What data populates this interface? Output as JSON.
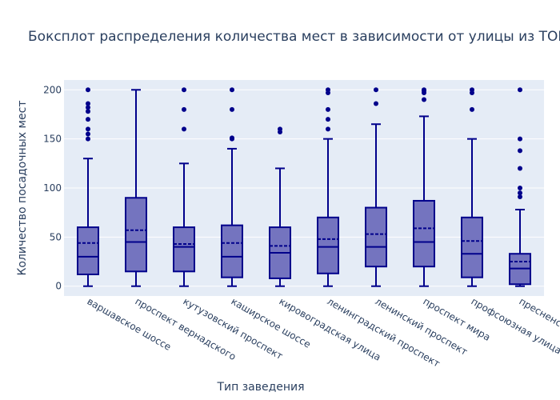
{
  "chart_data": {
    "type": "box",
    "title": "Боксплот распределения количества мест в зависимости от улицы из ТОП-",
    "xlabel": "Тип заведения",
    "ylabel": "Количество посадочных мест",
    "ylim": [
      -10,
      210
    ],
    "yticks": [
      0,
      50,
      100,
      150,
      200
    ],
    "grid": true,
    "legend": "none",
    "colors": {
      "plot_bg": "#e5ecf6",
      "box_fill": "#7474bf",
      "box_line": "#00008b",
      "grid": "#ffffff",
      "text": "#2a3f5f"
    },
    "categories": [
      "варшавское шоссе",
      "проспект вернадского",
      "кутузовский проспект",
      "каширское шоссе",
      "кировоградская улица",
      "ленинградский проспект",
      "ленинский проспект",
      "проспект мира",
      "профсоюзная улица",
      "пресненская набережная"
    ],
    "boxes": [
      {
        "min": 0,
        "q1": 12,
        "median": 30,
        "q3": 60,
        "max": 130,
        "mean": 44,
        "outliers": [
          150,
          155,
          160,
          170,
          178,
          182,
          186,
          200
        ]
      },
      {
        "min": 0,
        "q1": 15,
        "median": 45,
        "q3": 90,
        "max": 200,
        "mean": 57,
        "outliers": []
      },
      {
        "min": 0,
        "q1": 15,
        "median": 40,
        "q3": 60,
        "max": 125,
        "mean": 43,
        "outliers": [
          160,
          180,
          200
        ]
      },
      {
        "min": 0,
        "q1": 9,
        "median": 30,
        "q3": 62,
        "max": 140,
        "mean": 44,
        "outliers": [
          150,
          151,
          180,
          200
        ]
      },
      {
        "min": 0,
        "q1": 8,
        "median": 34,
        "q3": 60,
        "max": 120,
        "mean": 41,
        "outliers": [
          157,
          160
        ]
      },
      {
        "min": 0,
        "q1": 13,
        "median": 40,
        "q3": 70,
        "max": 150,
        "mean": 48,
        "outliers": [
          160,
          170,
          180,
          197,
          200
        ]
      },
      {
        "min": 0,
        "q1": 20,
        "median": 40,
        "q3": 80,
        "max": 165,
        "mean": 53,
        "outliers": [
          186,
          200
        ]
      },
      {
        "min": 0,
        "q1": 20,
        "median": 45,
        "q3": 87,
        "max": 173,
        "mean": 59,
        "outliers": [
          190,
          197,
          199,
          200
        ]
      },
      {
        "min": 0,
        "q1": 9,
        "median": 33,
        "q3": 70,
        "max": 150,
        "mean": 46,
        "outliers": [
          180,
          197,
          200
        ]
      },
      {
        "min": 0,
        "q1": 2,
        "median": 18,
        "q3": 33,
        "max": 78,
        "mean": 25,
        "outliers": [
          91,
          95,
          100,
          120,
          138,
          150,
          200
        ]
      }
    ]
  }
}
